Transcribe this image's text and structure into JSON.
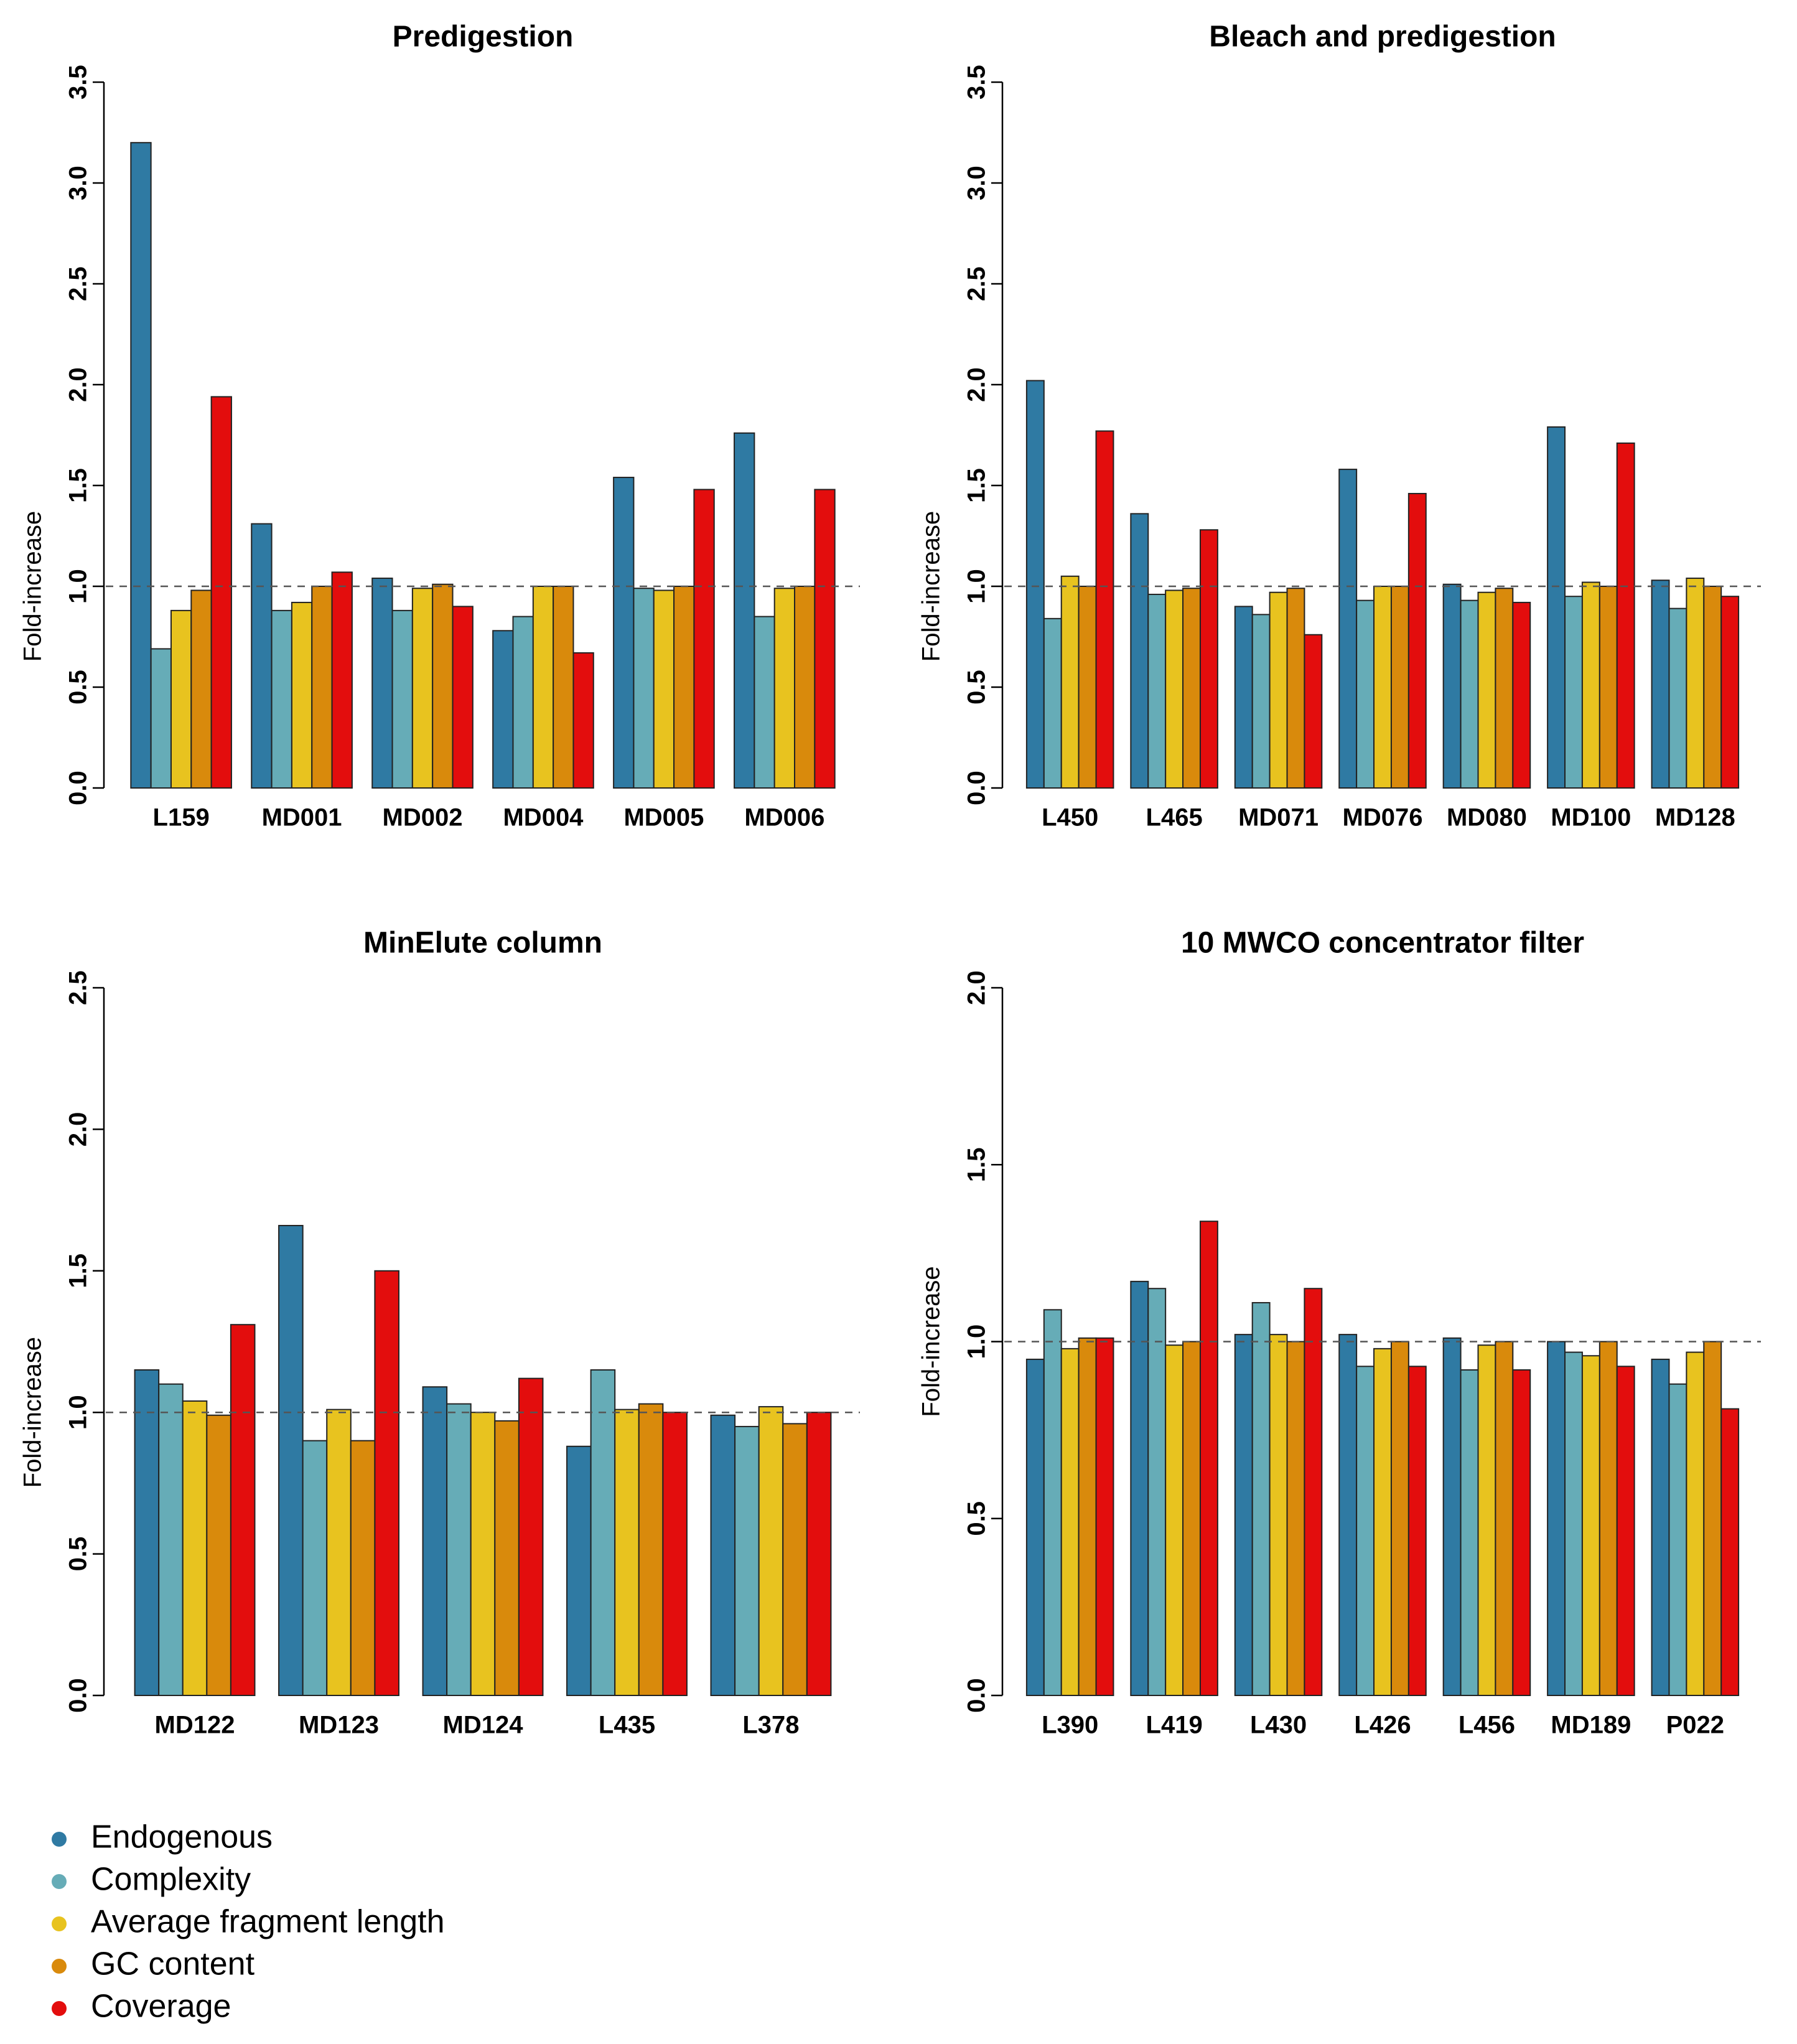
{
  "colors": {
    "Endogenous": "#2f7aa3",
    "Complexity": "#66acb7",
    "Average fragment length": "#e8c31f",
    "GC content": "#d98a0c",
    "Coverage": "#e30d0d"
  },
  "legend": {
    "items": [
      {
        "label": "Endogenous",
        "color": "#2f7aa3"
      },
      {
        "label": "Complexity",
        "color": "#66acb7"
      },
      {
        "label": "Average fragment length",
        "color": "#e8c31f"
      },
      {
        "label": "GC content",
        "color": "#d98a0c"
      },
      {
        "label": "Coverage",
        "color": "#e30d0d"
      }
    ]
  },
  "chart_data": [
    {
      "type": "bar",
      "title": "Predigestion",
      "ylabel": "Fold-increase",
      "xlabel": "",
      "ylim": [
        0,
        3.5
      ],
      "yticks": [
        "0.0",
        "0.5",
        "1.0",
        "1.5",
        "2.0",
        "2.5",
        "3.0",
        "3.5"
      ],
      "reference_line": 1.0,
      "categories": [
        "L159",
        "MD001",
        "MD002",
        "MD004",
        "MD005",
        "MD006"
      ],
      "series": [
        {
          "name": "Endogenous",
          "values": [
            3.2,
            1.31,
            1.04,
            0.78,
            1.54,
            1.76
          ]
        },
        {
          "name": "Complexity",
          "values": [
            0.69,
            0.88,
            0.88,
            0.85,
            0.99,
            0.85
          ]
        },
        {
          "name": "Average fragment length",
          "values": [
            0.88,
            0.92,
            0.99,
            1.0,
            0.98,
            0.99
          ]
        },
        {
          "name": "GC content",
          "values": [
            0.98,
            1.0,
            1.01,
            1.0,
            1.0,
            1.0
          ]
        },
        {
          "name": "Coverage",
          "values": [
            1.94,
            1.07,
            0.9,
            0.67,
            1.48,
            1.48
          ]
        }
      ]
    },
    {
      "type": "bar",
      "title": "Bleach and predigestion",
      "ylabel": "Fold-increase",
      "xlabel": "",
      "ylim": [
        0,
        3.5
      ],
      "yticks": [
        "0.0",
        "0.5",
        "1.0",
        "1.5",
        "2.0",
        "2.5",
        "3.0",
        "3.5"
      ],
      "reference_line": 1.0,
      "categories": [
        "L450",
        "L465",
        "MD071",
        "MD076",
        "MD080",
        "MD100",
        "MD128"
      ],
      "series": [
        {
          "name": "Endogenous",
          "values": [
            2.02,
            1.36,
            0.9,
            1.58,
            1.01,
            1.79,
            1.03
          ]
        },
        {
          "name": "Complexity",
          "values": [
            0.84,
            0.96,
            0.86,
            0.93,
            0.93,
            0.95,
            0.89
          ]
        },
        {
          "name": "Average fragment length",
          "values": [
            1.05,
            0.98,
            0.97,
            1.0,
            0.97,
            1.02,
            1.04
          ]
        },
        {
          "name": "GC content",
          "values": [
            1.0,
            0.99,
            0.99,
            1.0,
            0.99,
            1.0,
            1.0
          ]
        },
        {
          "name": "Coverage",
          "values": [
            1.77,
            1.28,
            0.76,
            1.46,
            0.92,
            1.71,
            0.95
          ]
        }
      ]
    },
    {
      "type": "bar",
      "title": "MinElute column",
      "ylabel": "Fold-increase",
      "xlabel": "",
      "ylim": [
        0,
        2.5
      ],
      "yticks": [
        "0.0",
        "0.5",
        "1.0",
        "1.5",
        "2.0",
        "2.5"
      ],
      "reference_line": 1.0,
      "categories": [
        "MD122",
        "MD123",
        "MD124",
        "L435",
        "L378"
      ],
      "series": [
        {
          "name": "Endogenous",
          "values": [
            1.15,
            1.66,
            1.09,
            0.88,
            0.99
          ]
        },
        {
          "name": "Complexity",
          "values": [
            1.1,
            0.9,
            1.03,
            1.15,
            0.95
          ]
        },
        {
          "name": "Average fragment length",
          "values": [
            1.04,
            1.01,
            1.0,
            1.01,
            1.02
          ]
        },
        {
          "name": "GC content",
          "values": [
            0.99,
            0.9,
            0.97,
            1.03,
            0.96
          ]
        },
        {
          "name": "Coverage",
          "values": [
            1.31,
            1.5,
            1.12,
            1.0,
            1.0
          ]
        }
      ]
    },
    {
      "type": "bar",
      "title": "10 MWCO concentrator filter",
      "ylabel": "Fold-increase",
      "xlabel": "",
      "ylim": [
        0,
        2.0
      ],
      "yticks": [
        "0.0",
        "0.5",
        "1.0",
        "1.5",
        "2.0"
      ],
      "reference_line": 1.0,
      "categories": [
        "L390",
        "L419",
        "L430",
        "L426",
        "L456",
        "MD189",
        "P022"
      ],
      "series": [
        {
          "name": "Endogenous",
          "values": [
            0.95,
            1.17,
            1.02,
            1.02,
            1.01,
            1.0,
            0.95
          ]
        },
        {
          "name": "Complexity",
          "values": [
            1.09,
            1.15,
            1.11,
            0.93,
            0.92,
            0.97,
            0.88
          ]
        },
        {
          "name": "Average fragment length",
          "values": [
            0.98,
            0.99,
            1.02,
            0.98,
            0.99,
            0.96,
            0.97
          ]
        },
        {
          "name": "GC content",
          "values": [
            1.01,
            1.0,
            1.0,
            1.0,
            1.0,
            1.0,
            1.0
          ]
        },
        {
          "name": "Coverage",
          "values": [
            1.01,
            1.34,
            1.15,
            0.93,
            0.92,
            0.93,
            0.81
          ]
        }
      ]
    }
  ]
}
